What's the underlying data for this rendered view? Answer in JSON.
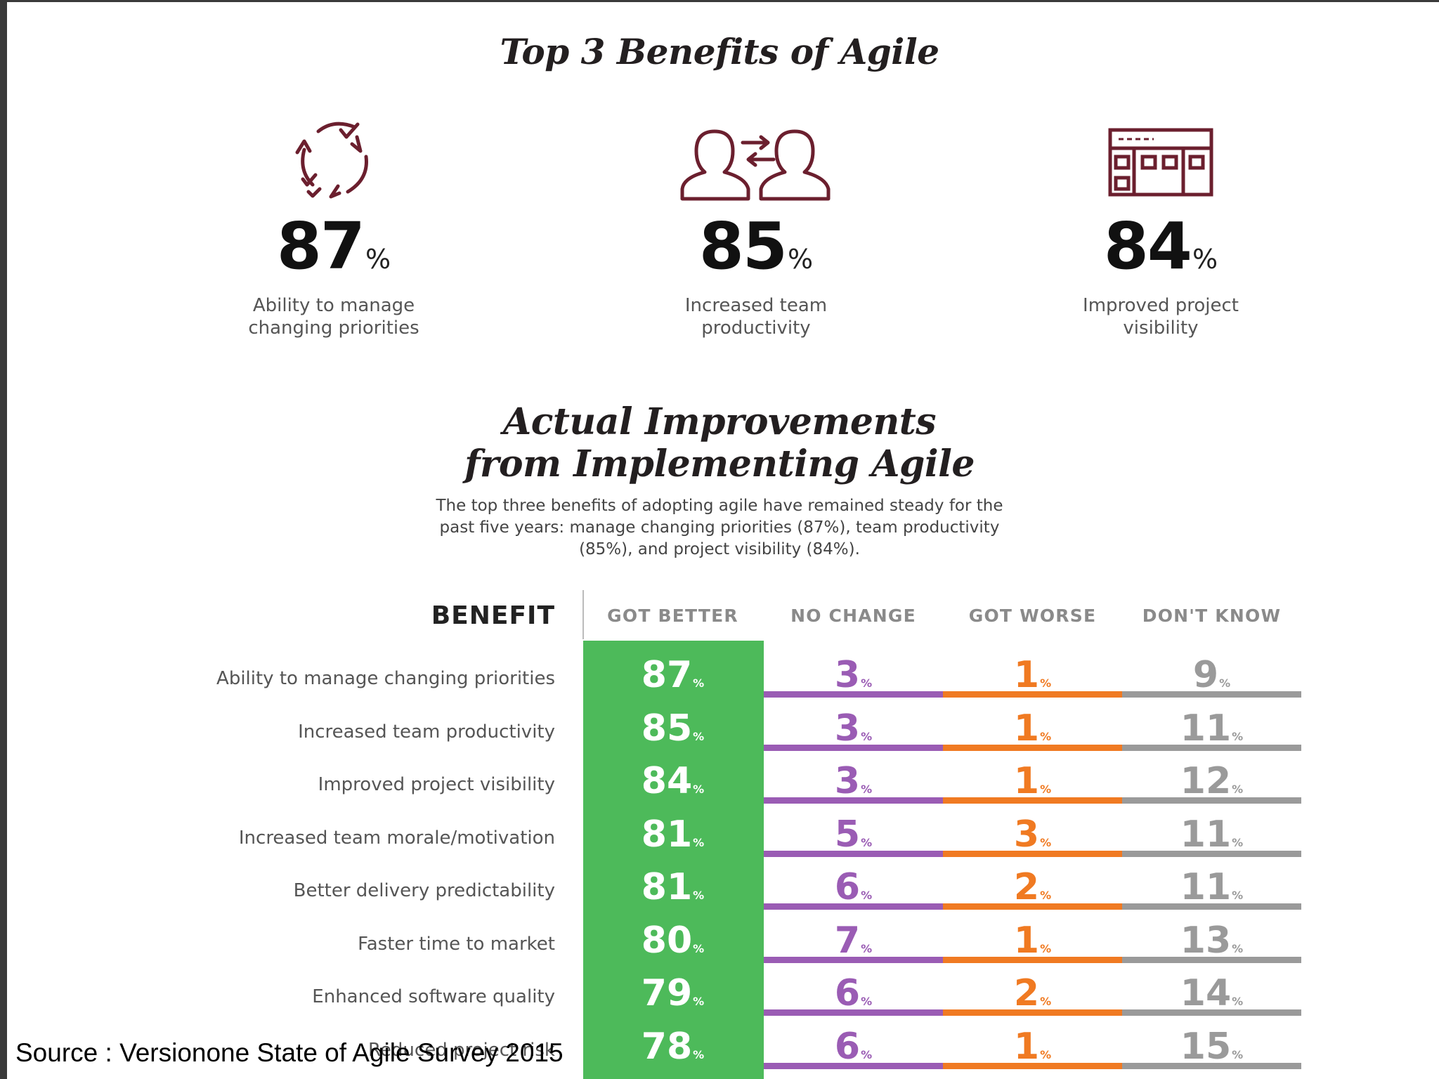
{
  "top_title": "Top 3 Benefits of Agile",
  "top_benefits": [
    {
      "value": "87",
      "unit": "%",
      "label_lines": [
        "Ability to manage",
        "changing priorities"
      ],
      "icon": "cycle-arrows-check-icon"
    },
    {
      "value": "85",
      "unit": "%",
      "label_lines": [
        "Increased team",
        "productivity"
      ],
      "icon": "team-exchange-icon"
    },
    {
      "value": "84",
      "unit": "%",
      "label_lines": [
        "Improved project",
        "visibility"
      ],
      "icon": "dashboard-board-icon"
    }
  ],
  "actual_title_lines": [
    "Actual Improvements",
    "from Implementing Agile"
  ],
  "intro_lines": [
    "The top three benefits of adopting agile have remained steady for the",
    "past five years: manage changing priorities (87%), team productivity",
    "(85%), and project visibility (84%)."
  ],
  "source": "Source : Versionone State of Agile Survey 2015",
  "colors": {
    "got_better": "#4dba5a",
    "no_change": "#9a5cb4",
    "got_worse": "#f07a22",
    "dont_know": "#9a9a9a",
    "icon_stroke": "#6b1f2e"
  },
  "chart_data": {
    "type": "table",
    "benefit_header": "BENEFIT",
    "columns": [
      "GOT BETTER",
      "NO CHANGE",
      "GOT WORSE",
      "DON'T KNOW"
    ],
    "unit": "%",
    "rows": [
      {
        "label": "Ability to manage changing priorities",
        "values": [
          87,
          3,
          1,
          9
        ]
      },
      {
        "label": "Increased team productivity",
        "values": [
          85,
          3,
          1,
          11
        ]
      },
      {
        "label": "Improved project visibility",
        "values": [
          84,
          3,
          1,
          12
        ]
      },
      {
        "label": "Increased team morale/motivation",
        "values": [
          81,
          5,
          3,
          11
        ]
      },
      {
        "label": "Better delivery predictability",
        "values": [
          81,
          6,
          2,
          11
        ]
      },
      {
        "label": "Faster time to market",
        "values": [
          80,
          7,
          1,
          13
        ]
      },
      {
        "label": "Enhanced software quality",
        "values": [
          79,
          6,
          2,
          14
        ]
      },
      {
        "label": "Reduced project risk",
        "values": [
          78,
          6,
          1,
          15
        ]
      }
    ]
  }
}
